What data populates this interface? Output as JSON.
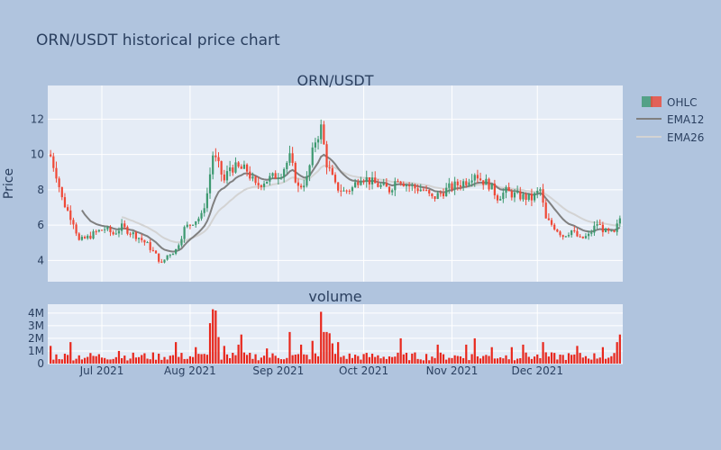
{
  "title": "ORN/USDT historical price chart",
  "colors": {
    "page_bg": "#b0c4de",
    "plot_bg": "#e5ecf6",
    "grid": "#ffffff",
    "increasing": "#3d9970",
    "decreasing": "#ef4836",
    "ema12": "#808080",
    "ema26": "#d3d3d3",
    "volume_bar": "#e8271c",
    "text": "#2a3f5f"
  },
  "legend": {
    "position": "top-right",
    "ohlc": "OHLC",
    "ema12": "EMA12",
    "ema26": "EMA26"
  },
  "chart_data": [
    {
      "type": "candlestick",
      "title": "ORN/USDT",
      "ylabel": "Price",
      "ylim": [
        2.8,
        13.9
      ],
      "yticks": [
        "4",
        "6",
        "8",
        "10",
        "12"
      ],
      "xlim": [
        "2021-06-12",
        "2021-12-31"
      ],
      "xticks": [
        {
          "date": "2021-07-01",
          "label": "Jul 2021"
        },
        {
          "date": "2021-08-01",
          "label": "Aug 2021"
        },
        {
          "date": "2021-09-01",
          "label": "Sep 2021"
        },
        {
          "date": "2021-10-01",
          "label": "Oct 2021"
        },
        {
          "date": "2021-11-01",
          "label": "Nov 2021"
        },
        {
          "date": "2021-12-01",
          "label": "Dec 2021"
        }
      ],
      "grid": true,
      "start_date": "2021-06-13",
      "close_anchors": [
        [
          "2021-06-13",
          9.9
        ],
        [
          "2021-06-15",
          8.9
        ],
        [
          "2021-06-17",
          7.5
        ],
        [
          "2021-06-19",
          6.8
        ],
        [
          "2021-06-21",
          6.2
        ],
        [
          "2021-06-23",
          5.1
        ],
        [
          "2021-06-26",
          5.3
        ],
        [
          "2021-06-29",
          5.6
        ],
        [
          "2021-07-02",
          5.8
        ],
        [
          "2021-07-05",
          5.5
        ],
        [
          "2021-07-08",
          5.9
        ],
        [
          "2021-07-11",
          5.6
        ],
        [
          "2021-07-14",
          5.3
        ],
        [
          "2021-07-17",
          4.9
        ],
        [
          "2021-07-20",
          4.3
        ],
        [
          "2021-07-22",
          3.8
        ],
        [
          "2021-07-24",
          4.3
        ],
        [
          "2021-07-27",
          4.6
        ],
        [
          "2021-07-30",
          5.8
        ],
        [
          "2021-08-02",
          6.2
        ],
        [
          "2021-08-05",
          6.5
        ],
        [
          "2021-08-07",
          7.8
        ],
        [
          "2021-08-09",
          10.0
        ],
        [
          "2021-08-11",
          9.3
        ],
        [
          "2021-08-13",
          8.5
        ],
        [
          "2021-08-15",
          9.3
        ],
        [
          "2021-08-18",
          9.2
        ],
        [
          "2021-08-21",
          9.1
        ],
        [
          "2021-08-24",
          8.2
        ],
        [
          "2021-08-27",
          8.5
        ],
        [
          "2021-08-30",
          8.7
        ],
        [
          "2021-09-02",
          9.0
        ],
        [
          "2021-09-05",
          9.8
        ],
        [
          "2021-09-08",
          8.1
        ],
        [
          "2021-09-11",
          8.6
        ],
        [
          "2021-09-14",
          10.8
        ],
        [
          "2021-09-16",
          11.5
        ],
        [
          "2021-09-18",
          9.5
        ],
        [
          "2021-09-21",
          8.2
        ],
        [
          "2021-09-24",
          7.9
        ],
        [
          "2021-09-27",
          8.1
        ],
        [
          "2021-09-30",
          8.8
        ],
        [
          "2021-10-04",
          8.4
        ],
        [
          "2021-10-07",
          8.2
        ],
        [
          "2021-10-10",
          8.0
        ],
        [
          "2021-10-13",
          8.7
        ],
        [
          "2021-10-16",
          8.3
        ],
        [
          "2021-10-19",
          8.1
        ],
        [
          "2021-10-22",
          8.0
        ],
        [
          "2021-10-25",
          7.5
        ],
        [
          "2021-10-28",
          7.8
        ],
        [
          "2021-10-31",
          8.1
        ],
        [
          "2021-11-03",
          8.3
        ],
        [
          "2021-11-06",
          8.5
        ],
        [
          "2021-11-09",
          9.0
        ],
        [
          "2021-11-11",
          8.6
        ],
        [
          "2021-11-14",
          8.3
        ],
        [
          "2021-11-17",
          7.6
        ],
        [
          "2021-11-20",
          7.9
        ],
        [
          "2021-11-23",
          7.7
        ],
        [
          "2021-11-26",
          7.6
        ],
        [
          "2021-11-29",
          7.5
        ],
        [
          "2021-12-02",
          8.0
        ],
        [
          "2021-12-04",
          6.3
        ],
        [
          "2021-12-07",
          5.9
        ],
        [
          "2021-12-10",
          5.4
        ],
        [
          "2021-12-13",
          5.7
        ],
        [
          "2021-12-16",
          5.2
        ],
        [
          "2021-12-19",
          5.4
        ],
        [
          "2021-12-22",
          6.1
        ],
        [
          "2021-12-25",
          5.6
        ],
        [
          "2021-12-28",
          5.5
        ],
        [
          "2021-12-30",
          6.4
        ]
      ],
      "ema12_start": "2021-06-24",
      "ema26_start": "2021-07-08",
      "series": [
        {
          "name": "OHLC",
          "kind": "candlestick"
        },
        {
          "name": "EMA12",
          "kind": "line"
        },
        {
          "name": "EMA26",
          "kind": "line"
        }
      ]
    },
    {
      "type": "bar",
      "title": "volume",
      "ylim": [
        0,
        4700000
      ],
      "yticks": [
        "0",
        "1M",
        "2M",
        "3M",
        "4M"
      ],
      "xlim": [
        "2021-06-12",
        "2021-12-31"
      ],
      "grid": true,
      "volume_spikes": [
        [
          "2021-06-13",
          1400000
        ],
        [
          "2021-06-20",
          1700000
        ],
        [
          "2021-07-07",
          1000000
        ],
        [
          "2021-07-27",
          1700000
        ],
        [
          "2021-08-03",
          1300000
        ],
        [
          "2021-08-08",
          3200000
        ],
        [
          "2021-08-09",
          4300000
        ],
        [
          "2021-08-10",
          4200000
        ],
        [
          "2021-08-11",
          2100000
        ],
        [
          "2021-08-13",
          1400000
        ],
        [
          "2021-08-18",
          1500000
        ],
        [
          "2021-08-19",
          2300000
        ],
        [
          "2021-08-28",
          1200000
        ],
        [
          "2021-09-05",
          2500000
        ],
        [
          "2021-09-09",
          1500000
        ],
        [
          "2021-09-13",
          1800000
        ],
        [
          "2021-09-16",
          4100000
        ],
        [
          "2021-09-17",
          2500000
        ],
        [
          "2021-09-18",
          2500000
        ],
        [
          "2021-09-19",
          2400000
        ],
        [
          "2021-09-20",
          1600000
        ],
        [
          "2021-09-22",
          1700000
        ],
        [
          "2021-10-14",
          2000000
        ],
        [
          "2021-10-27",
          1500000
        ],
        [
          "2021-11-06",
          1500000
        ],
        [
          "2021-11-09",
          2000000
        ],
        [
          "2021-11-15",
          1300000
        ],
        [
          "2021-11-22",
          1300000
        ],
        [
          "2021-11-26",
          1500000
        ],
        [
          "2021-12-03",
          1700000
        ],
        [
          "2021-12-15",
          1400000
        ],
        [
          "2021-12-24",
          1300000
        ],
        [
          "2021-12-29",
          1700000
        ],
        [
          "2021-12-30",
          2300000
        ]
      ],
      "series": [
        {
          "name": "volume",
          "kind": "bar"
        }
      ]
    }
  ]
}
